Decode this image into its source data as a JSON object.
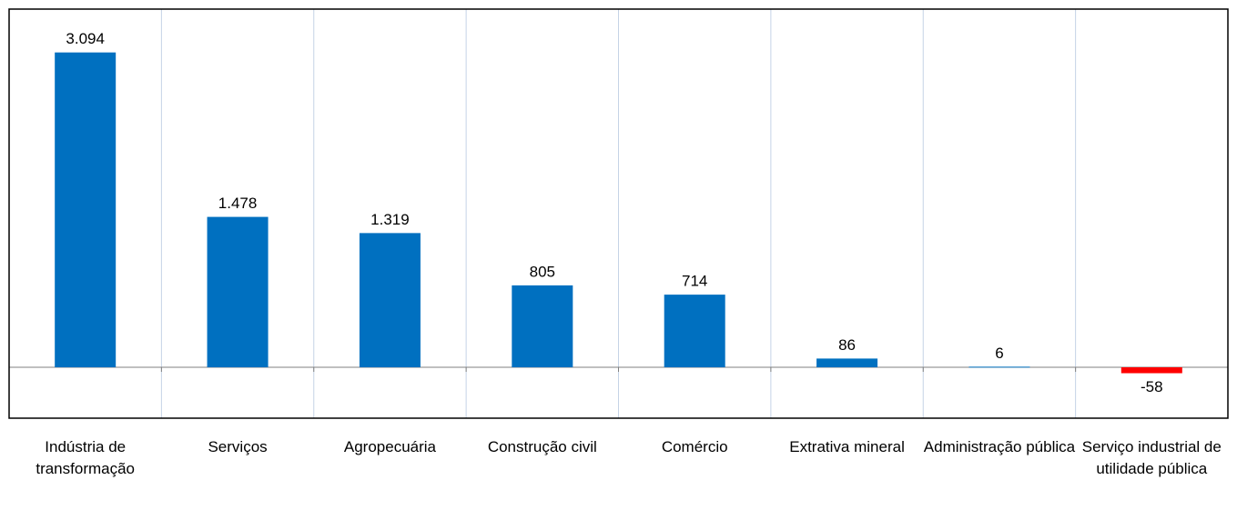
{
  "chart_data": {
    "type": "bar",
    "categories": [
      "Indústria de transformação",
      "Serviços",
      "Agropecuária",
      "Construção civil",
      "Comércio",
      "Extrativa mineral",
      "Administração pública",
      "Serviço industrial de utilidade pública"
    ],
    "values": [
      3094,
      1478,
      1319,
      805,
      714,
      86,
      6,
      -58
    ],
    "value_labels": [
      "3.094",
      "1.478",
      "1.319",
      "805",
      "714",
      "86",
      "6",
      "-58"
    ],
    "colors": [
      "#0070c0",
      "#0070c0",
      "#0070c0",
      "#0070c0",
      "#0070c0",
      "#0070c0",
      "#0070c0",
      "#ff0000"
    ],
    "ylim": [
      -500,
      3520
    ],
    "vertical_grid": true
  }
}
